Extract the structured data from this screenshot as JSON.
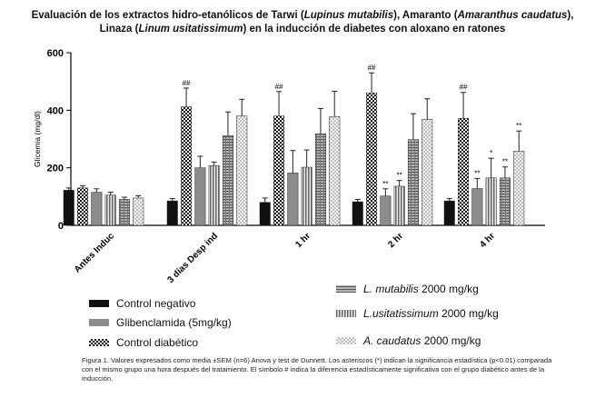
{
  "title": {
    "line1": [
      {
        "t": "Evaluación  de los extractos hidro-etanólicos de Tarwi (",
        "i": false
      },
      {
        "t": "Lupinus mutabilis",
        "i": true
      },
      {
        "t": "), Amaranto (",
        "i": false
      },
      {
        "t": "Amaranthus caudatus",
        "i": true
      },
      {
        "t": "),",
        "i": false
      }
    ],
    "line2": [
      {
        "t": "Linaza (",
        "i": false
      },
      {
        "t": "Linum usitatissimum",
        "i": true
      },
      {
        "t": ") en la inducción de diabetes con aloxano en ratones",
        "i": false
      }
    ]
  },
  "chart_data": {
    "type": "bar",
    "ylabel": "Glicemia (mg/dl)",
    "ylim": [
      0,
      600
    ],
    "yticks": [
      0,
      200,
      400,
      600
    ],
    "categories": [
      "Antes Induc",
      "3 días Desp ind",
      "1 hr",
      "2 hr",
      "4 hr"
    ],
    "series": [
      {
        "name": "Control negativo",
        "pattern": "solid-black",
        "values": [
          122,
          85,
          80,
          82,
          85
        ],
        "errors": [
          8,
          8,
          15,
          8,
          8
        ],
        "marks": [
          "",
          "",
          "",
          "",
          ""
        ]
      },
      {
        "name": "Control diabético",
        "pattern": "checker",
        "values": [
          130,
          412,
          380,
          460,
          372
        ],
        "errors": [
          8,
          65,
          85,
          70,
          90
        ],
        "marks": [
          "",
          "##",
          "##",
          "##",
          "##"
        ]
      },
      {
        "name": "Glibenclamida (5mg/kg)",
        "pattern": "solid-gray",
        "values": [
          115,
          200,
          182,
          102,
          128
        ],
        "errors": [
          12,
          40,
          78,
          25,
          35
        ],
        "marks": [
          "",
          "",
          "",
          "**",
          "**"
        ]
      },
      {
        "name": "L.usitatissimum 2000 mg/kg",
        "pattern": "vlines",
        "values": [
          105,
          208,
          202,
          136,
          165
        ],
        "errors": [
          10,
          12,
          60,
          20,
          68
        ],
        "marks": [
          "",
          "",
          "",
          "**",
          "*"
        ]
      },
      {
        "name": "L. mutabilis 2000 mg/kg",
        "pattern": "hatch",
        "values": [
          90,
          312,
          318,
          298,
          165
        ],
        "errors": [
          8,
          82,
          88,
          90,
          38
        ],
        "marks": [
          "",
          "",
          "",
          "",
          "**"
        ]
      },
      {
        "name": "A. caudatus 2000 mg/kg",
        "pattern": "light-check",
        "values": [
          95,
          380,
          378,
          368,
          258
        ],
        "errors": [
          8,
          58,
          88,
          72,
          70
        ],
        "marks": [
          "",
          "",
          "",
          "",
          "**"
        ]
      }
    ]
  },
  "legend": [
    {
      "key": "control-negativo",
      "pattern": "solid-black",
      "parts": [
        {
          "t": "Control negativo",
          "i": false
        }
      ]
    },
    {
      "key": "glibenclamida",
      "pattern": "solid-gray",
      "parts": [
        {
          "t": "Glibenclamida (5mg/kg)",
          "i": false
        }
      ]
    },
    {
      "key": "control-diabetico",
      "pattern": "checker",
      "parts": [
        {
          "t": "Control diabético",
          "i": false
        }
      ]
    },
    {
      "key": "l-mutabilis",
      "pattern": "hatch",
      "parts": [
        {
          "t": "L. mutabilis ",
          "i": true
        },
        {
          "t": "2000 mg/kg",
          "i": false
        }
      ]
    },
    {
      "key": "l-usitatissimum",
      "pattern": "vlines",
      "parts": [
        {
          "t": "L.usitatissimum ",
          "i": true
        },
        {
          "t": "2000 mg/kg",
          "i": false
        }
      ]
    },
    {
      "key": "a-caudatus",
      "pattern": "light-check",
      "parts": [
        {
          "t": "A. caudatus ",
          "i": true
        },
        {
          "t": "2000 mg/kg",
          "i": false
        }
      ]
    }
  ],
  "caption": "Figura 1. Valores expresados como media ±SEM (n=6) Anova y test de Dunnett. Los asteriscos (*) indican la significancia estadística (p<0.01) comparada con el mismo grupo una hora después del tratamiento. El símbolo # indica la diferencia estadísticamente significativa con el grupo diabético antes de la inducción."
}
